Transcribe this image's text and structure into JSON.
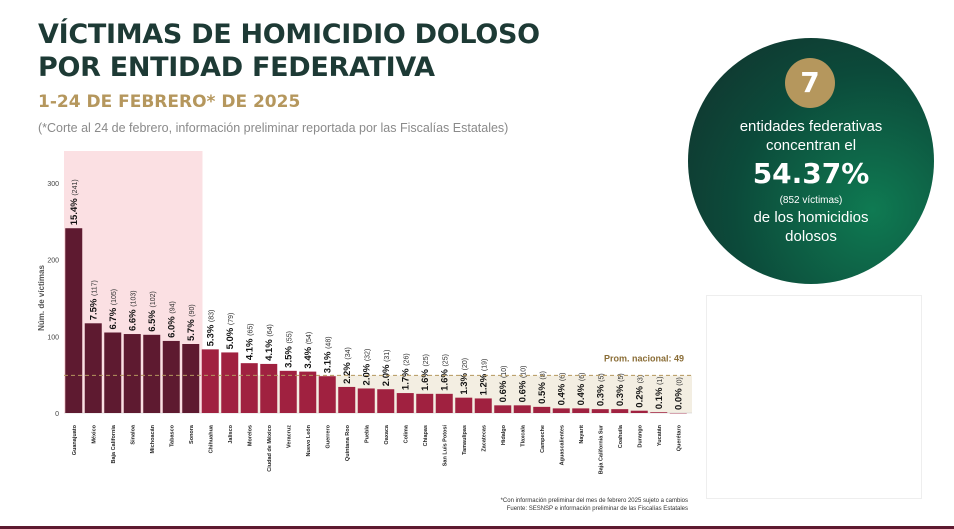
{
  "title_line1": "VÍCTIMAS DE HOMICIDIO DOLOSO",
  "title_line2": "POR ENTIDAD FEDERATIVA",
  "subtitle": "1-24 DE FEBRERO* DE 2025",
  "note": "(*Corte al 24 de febrero, información preliminar reportada por las Fiscalías Estatales)",
  "highlight": {
    "number": "7",
    "line1": "entidades federativas",
    "line2": "concentran el",
    "percent": "54.37%",
    "victims": "(852 víctimas)",
    "line3": "de los homicidios",
    "line4": "dolosos"
  },
  "footnote_line1": "*Con información preliminar del mes de febrero 2025 sujeto a cambios",
  "footnote_line2": "Fuente: SESNSP e información preliminar de las Fiscalías Estatales",
  "colors": {
    "title": "#1d3a35",
    "gold": "#b5975d",
    "bar_top7": "#5e1a30",
    "bar_rest": "#a02140",
    "highlight_band": "#fbe0e3",
    "average_band": "#f3eee2"
  },
  "chart_data": {
    "type": "bar",
    "ylabel": "Núm. de víctimas",
    "ylim": [
      0,
      300
    ],
    "yticks": [
      0,
      100,
      200,
      300
    ],
    "average_label": "Prom. nacional: 49",
    "average": 49,
    "highlighted_count": 7,
    "categories": [
      "Guanajuato",
      "México",
      "Baja California",
      "Sinaloa",
      "Michoacán",
      "Tabasco",
      "Sonora",
      "Chihuahua",
      "Jalisco",
      "Morelos",
      "Ciudad de México",
      "Veracruz",
      "Nuevo León",
      "Guerrero",
      "Quintana Roo",
      "Puebla",
      "Oaxaca",
      "Colima",
      "Chiapas",
      "San Luis Potosí",
      "Tamaulipas",
      "Zacatecas",
      "Hidalgo",
      "Tlaxcala",
      "Campeche",
      "Aguascalientes",
      "Nayarit",
      "Baja California Sur",
      "Coahuila",
      "Durango",
      "Yucatán",
      "Querétaro"
    ],
    "values": [
      241,
      117,
      105,
      103,
      102,
      94,
      90,
      83,
      79,
      65,
      64,
      55,
      54,
      48,
      34,
      32,
      31,
      26,
      25,
      25,
      20,
      19,
      10,
      10,
      8,
      6,
      6,
      5,
      5,
      3,
      1,
      0
    ],
    "pct_labels": [
      "15.4%",
      "7.5%",
      "6.7%",
      "6.6%",
      "6.5%",
      "6.0%",
      "5.7%",
      "5.3%",
      "5.0%",
      "4.1%",
      "4.1%",
      "3.5%",
      "3.4%",
      "3.1%",
      "2.2%",
      "2.0%",
      "2.0%",
      "1.7%",
      "1.6%",
      "1.6%",
      "1.3%",
      "1.2%",
      "0.6%",
      "0.6%",
      "0.5%",
      "0.4%",
      "0.4%",
      "0.3%",
      "0.3%",
      "0.2%",
      "0.1%",
      "0.0%"
    ],
    "count_labels": [
      "(241)",
      "(117)",
      "(105)",
      "(103)",
      "(102)",
      "(94)",
      "(90)",
      "(83)",
      "(79)",
      "(65)",
      "(64)",
      "(55)",
      "(54)",
      "(48)",
      "(34)",
      "(32)",
      "(31)",
      "(26)",
      "(25)",
      "(25)",
      "(20)",
      "(19)",
      "(10)",
      "(10)",
      "(8)",
      "(6)",
      "(6)",
      "(5)",
      "(5)",
      "(3)",
      "(1)",
      "(0)"
    ]
  }
}
